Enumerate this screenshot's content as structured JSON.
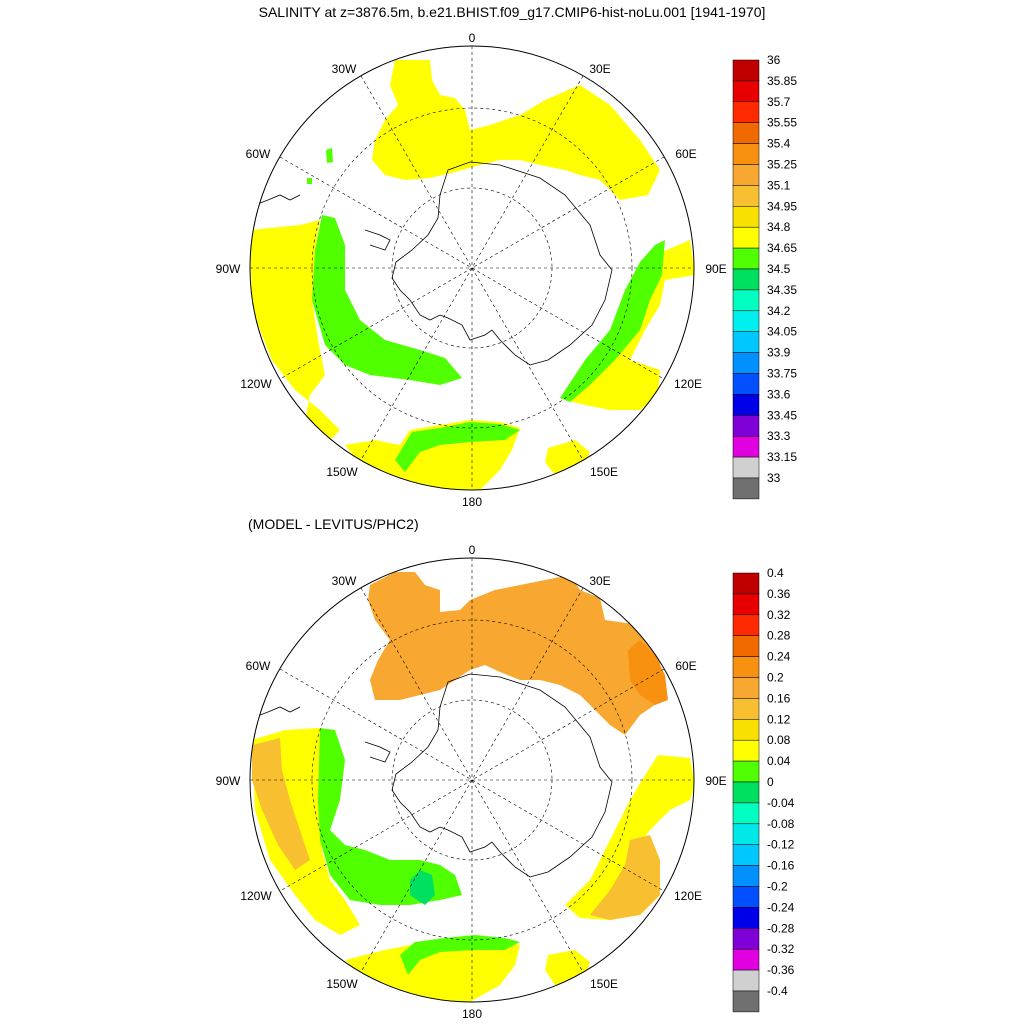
{
  "title": "SALINITY at z=3876.5m, b.e21.BHIST.f09_g17.CMIP6-hist-noLu.001 [1941-1970]",
  "subtitle": "(MODEL - LEVITUS/PHC2)",
  "map_labels": {
    "lon_0": "0",
    "lon_30e": "30E",
    "lon_60e": "60E",
    "lon_90e": "90E",
    "lon_120e": "120E",
    "lon_150e": "150E",
    "lon_180": "180",
    "lon_150w": "150W",
    "lon_120w": "120W",
    "lon_90w": "90W",
    "lon_60w": "60W",
    "lon_30w": "30W"
  },
  "colorbar_top": {
    "labels": [
      "36",
      "35.85",
      "35.7",
      "35.55",
      "35.4",
      "35.25",
      "35.1",
      "34.95",
      "34.8",
      "34.65",
      "34.5",
      "34.35",
      "34.2",
      "34.05",
      "33.9",
      "33.75",
      "33.6",
      "33.45",
      "33.3",
      "33.15",
      "33"
    ],
    "colors": [
      "#c00000",
      "#e80000",
      "#ff2a00",
      "#f06a00",
      "#f89010",
      "#f8a830",
      "#f8c030",
      "#f8e000",
      "#ffff00",
      "#50ff00",
      "#00e060",
      "#00ffc0",
      "#00f0f0",
      "#00c8ff",
      "#0090ff",
      "#0050ff",
      "#0000e8",
      "#8000d8",
      "#e000e0",
      "#d0d0d0",
      "#707070"
    ]
  },
  "colorbar_bottom": {
    "labels": [
      "0.4",
      "0.36",
      "0.32",
      "0.28",
      "0.24",
      "0.2",
      "0.16",
      "0.12",
      "0.08",
      "0.04",
      "0",
      "-0.04",
      "-0.08",
      "-0.12",
      "-0.16",
      "-0.2",
      "-0.24",
      "-0.28",
      "-0.32",
      "-0.36",
      "-0.4"
    ],
    "colors": [
      "#c00000",
      "#e80000",
      "#ff2a00",
      "#f06a00",
      "#f89010",
      "#f8a830",
      "#f8c030",
      "#f8e000",
      "#ffff00",
      "#50ff00",
      "#00e060",
      "#00ffc0",
      "#00e8e8",
      "#00c8ff",
      "#0090ff",
      "#0050ff",
      "#0000e8",
      "#8000d8",
      "#e000e0",
      "#d0d0d0",
      "#707070"
    ]
  }
}
